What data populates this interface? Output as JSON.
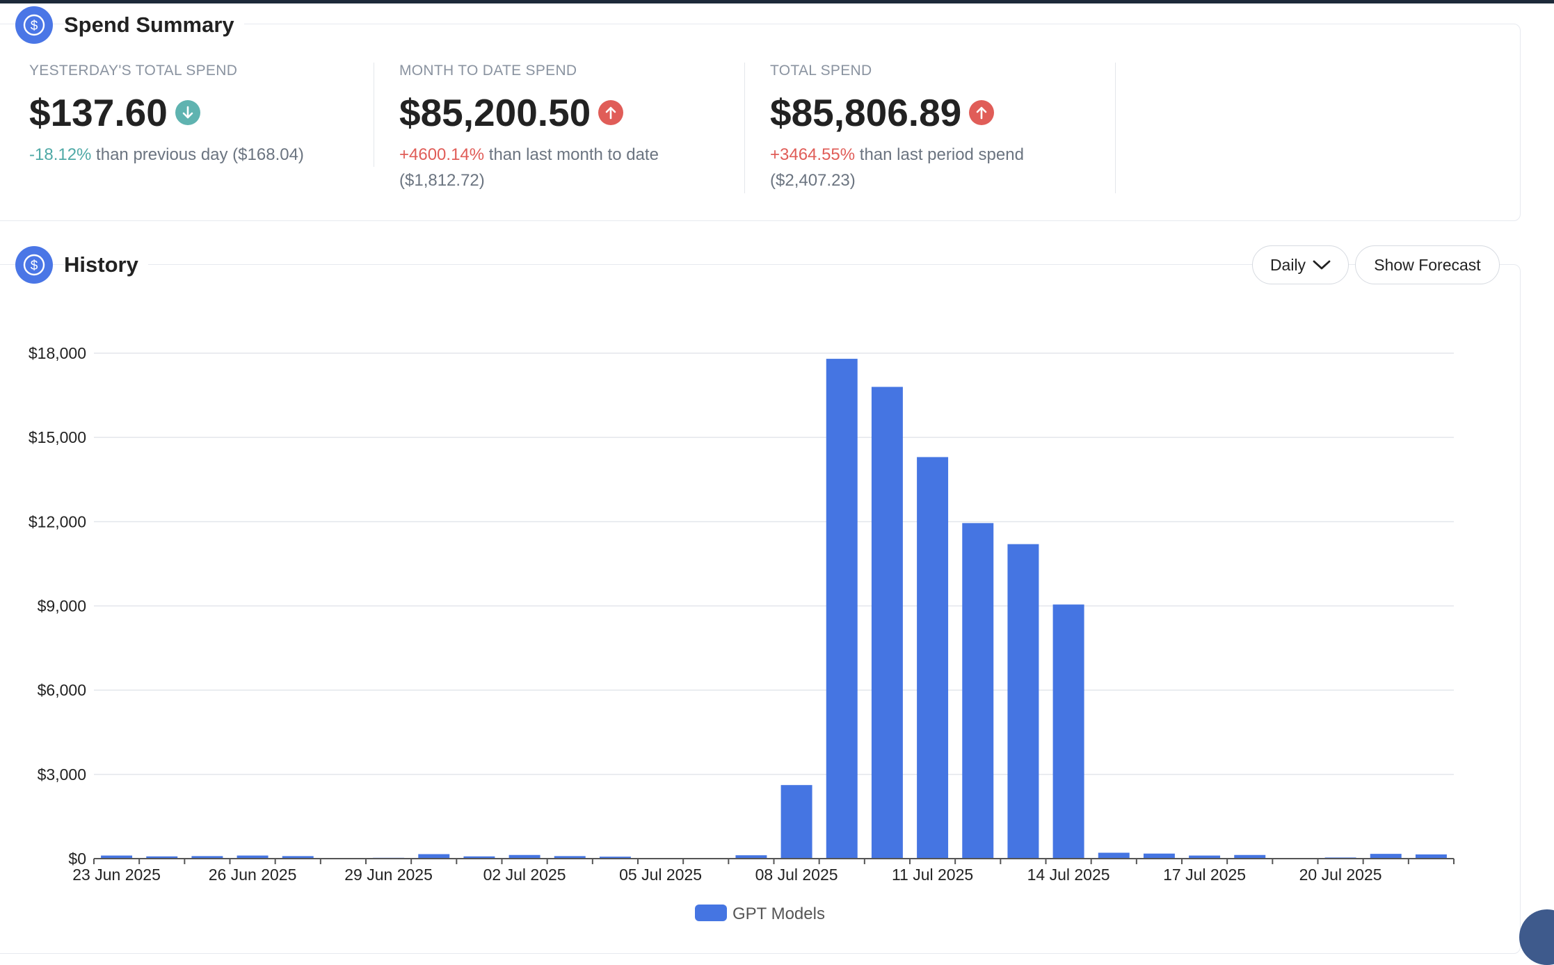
{
  "summary": {
    "title": "Spend Summary",
    "icon": "dollar-circle-icon",
    "stats": [
      {
        "label": "YESTERDAY'S TOTAL SPEND",
        "value": "$137.60",
        "direction": "down",
        "pct": "-18.12%",
        "comparison": " than previous day ($168.04)"
      },
      {
        "label": "MONTH TO DATE SPEND",
        "value": "$85,200.50",
        "direction": "up",
        "pct": "+4600.14%",
        "comparison": " than last month to date ($1,812.72)"
      },
      {
        "label": "TOTAL SPEND",
        "value": "$85,806.89",
        "direction": "up",
        "pct": "+3464.55%",
        "comparison": " than last period spend ($2,407.23)"
      }
    ]
  },
  "history": {
    "title": "History",
    "icon": "dollar-circle-icon",
    "interval_label": "Daily",
    "forecast_label": "Show Forecast"
  },
  "colors": {
    "accent": "#4a76e6",
    "bar": "#4575e2",
    "up": "#e05d58",
    "down": "#5fb3b0"
  },
  "chart_data": {
    "type": "bar",
    "categories": [
      "23 Jun 2025",
      "24 Jun 2025",
      "25 Jun 2025",
      "26 Jun 2025",
      "27 Jun 2025",
      "28 Jun 2025",
      "29 Jun 2025",
      "30 Jun 2025",
      "01 Jul 2025",
      "02 Jul 2025",
      "03 Jul 2025",
      "04 Jul 2025",
      "05 Jul 2025",
      "06 Jul 2025",
      "07 Jul 2025",
      "08 Jul 2025",
      "09 Jul 2025",
      "10 Jul 2025",
      "11 Jul 2025",
      "12 Jul 2025",
      "13 Jul 2025",
      "14 Jul 2025",
      "15 Jul 2025",
      "16 Jul 2025",
      "17 Jul 2025",
      "18 Jul 2025",
      "19 Jul 2025",
      "20 Jul 2025",
      "21 Jul 2025",
      "22 Jul 2025"
    ],
    "tick_labels": [
      "23 Jun 2025",
      "26 Jun 2025",
      "29 Jun 2025",
      "02 Jul 2025",
      "05 Jul 2025",
      "08 Jul 2025",
      "11 Jul 2025",
      "14 Jul 2025",
      "17 Jul 2025",
      "20 Jul 2025"
    ],
    "series": [
      {
        "name": "GPT Models",
        "values": [
          110,
          80,
          90,
          110,
          90,
          20,
          30,
          160,
          80,
          130,
          90,
          70,
          20,
          20,
          120,
          2620,
          17800,
          16800,
          14300,
          11950,
          11200,
          9050,
          210,
          180,
          110,
          130,
          20,
          40,
          170,
          150
        ]
      }
    ],
    "ylim": [
      0,
      18000
    ],
    "yticks": [
      0,
      3000,
      6000,
      9000,
      12000,
      15000,
      18000
    ],
    "ytick_labels": [
      "$0",
      "$3,000",
      "$6,000",
      "$9,000",
      "$12,000",
      "$15,000",
      "$18,000"
    ],
    "grid": true,
    "legend": "bottom-center"
  }
}
